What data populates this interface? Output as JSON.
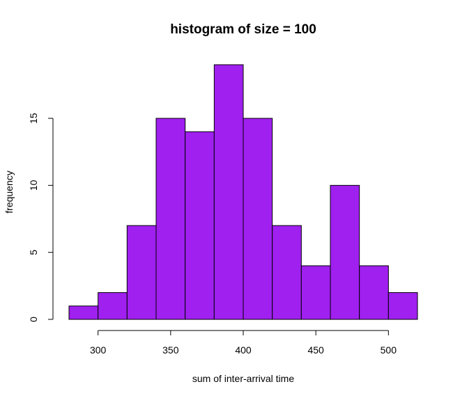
{
  "chart_data": {
    "type": "bar",
    "title": "histogram of size = 100",
    "xlabel": "sum of inter-arrival time",
    "ylabel": "frequency",
    "bins": [
      {
        "from": 280,
        "to": 300,
        "count": 1
      },
      {
        "from": 300,
        "to": 320,
        "count": 2
      },
      {
        "from": 320,
        "to": 340,
        "count": 7
      },
      {
        "from": 340,
        "to": 360,
        "count": 15
      },
      {
        "from": 360,
        "to": 380,
        "count": 14
      },
      {
        "from": 380,
        "to": 400,
        "count": 19
      },
      {
        "from": 400,
        "to": 420,
        "count": 15
      },
      {
        "from": 420,
        "to": 440,
        "count": 7
      },
      {
        "from": 440,
        "to": 460,
        "count": 4
      },
      {
        "from": 460,
        "to": 480,
        "count": 10
      },
      {
        "from": 480,
        "to": 500,
        "count": 4
      },
      {
        "from": 500,
        "to": 520,
        "count": 2
      }
    ],
    "xticks": [
      "300",
      "350",
      "400",
      "450",
      "500"
    ],
    "yticks": [
      "0",
      "5",
      "10",
      "15"
    ],
    "xlim": [
      280,
      520
    ],
    "ylim": [
      0,
      19
    ],
    "bar_color": "#a020f0",
    "grid": false,
    "legend": "none"
  }
}
